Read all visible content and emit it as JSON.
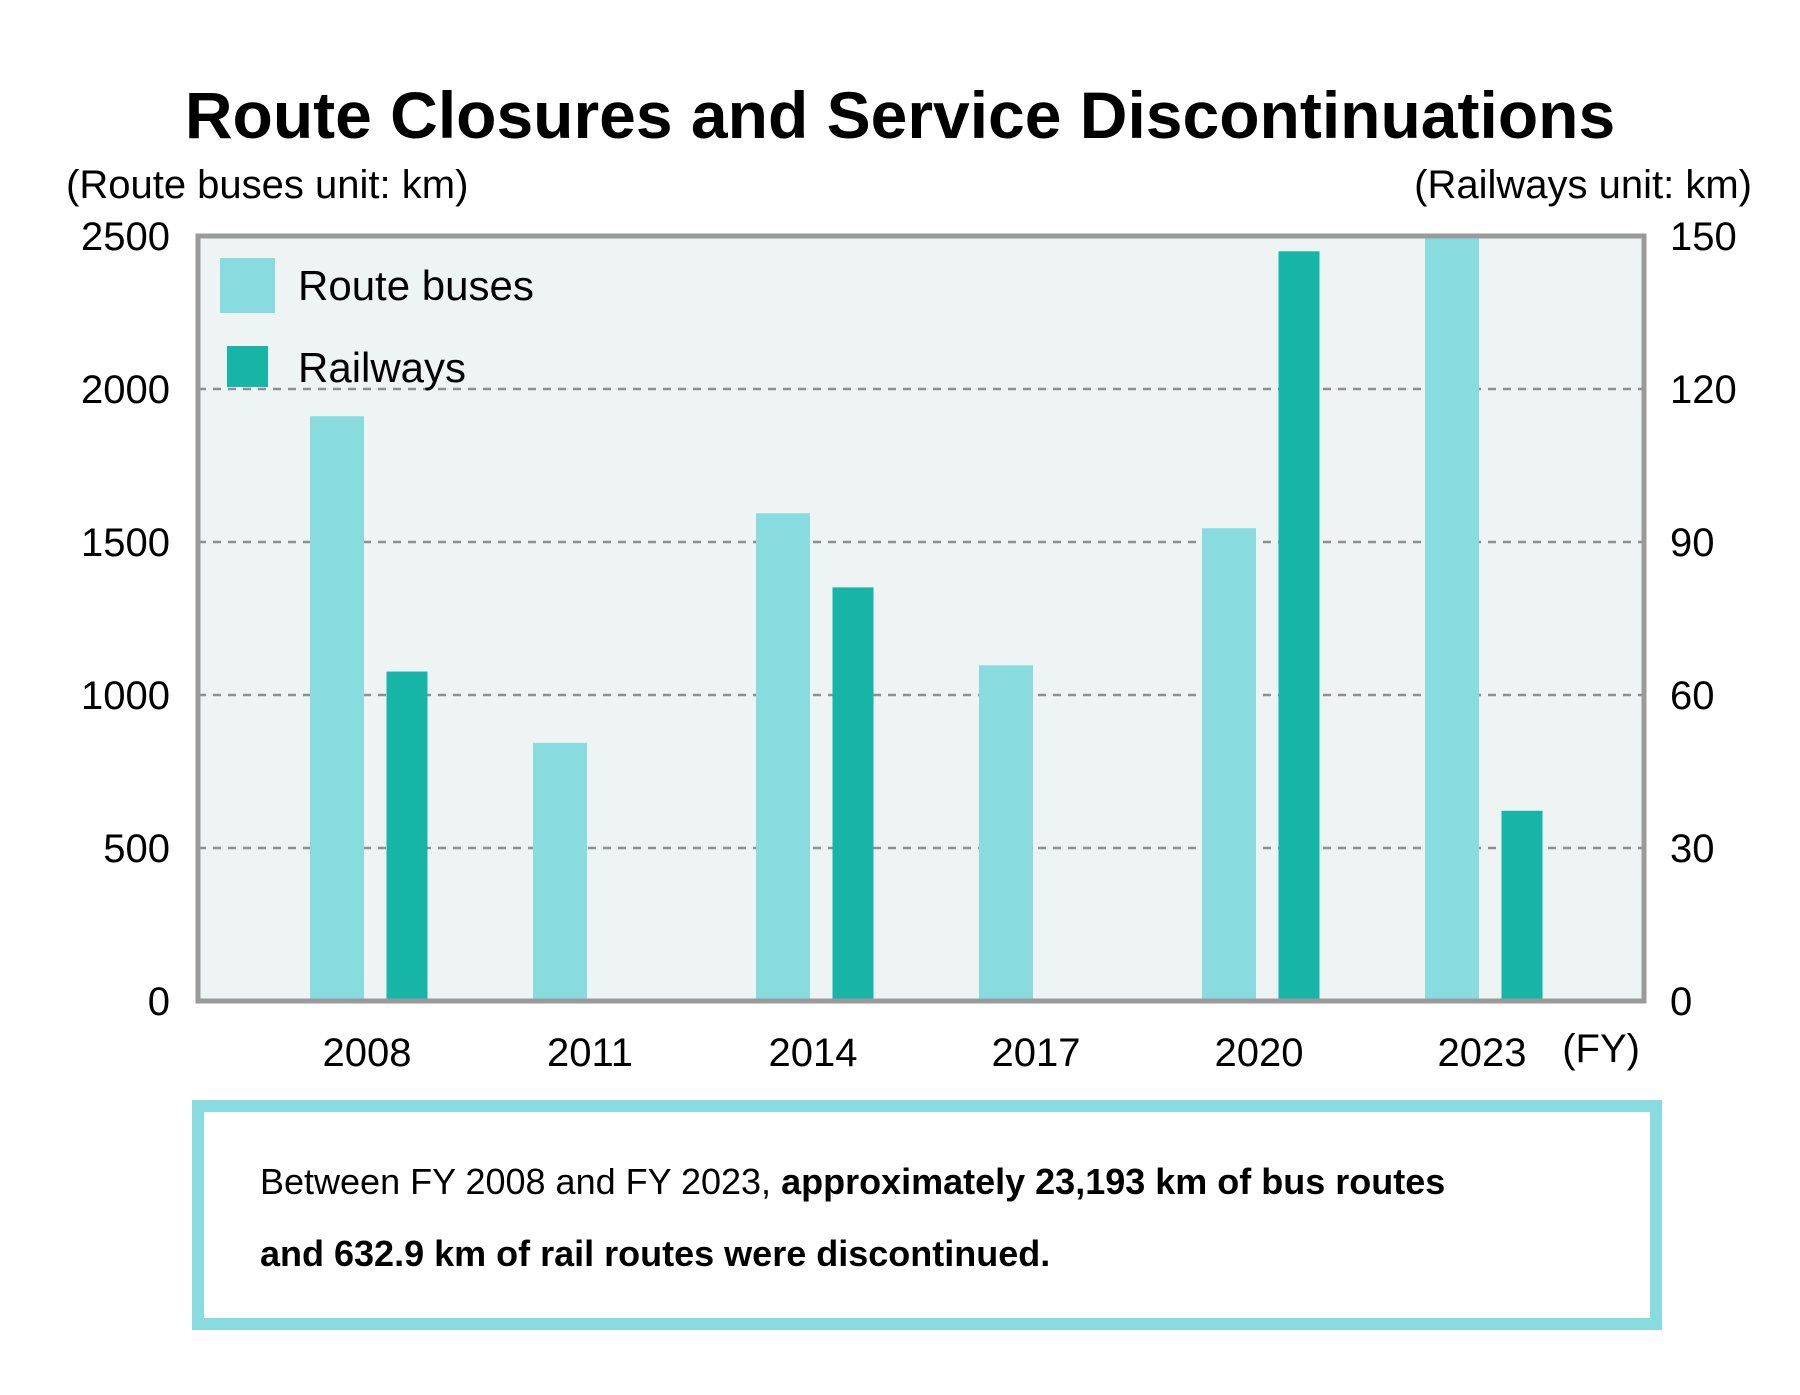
{
  "chart_data": {
    "type": "bar",
    "title": "Route Closures and Service Discontinuations",
    "left_axis_label": "(Route buses unit: km)",
    "right_axis_label": "(Railways unit: km)",
    "xlabel": "(FY)",
    "categories": [
      "2008",
      "2011",
      "2014",
      "2017",
      "2020",
      "2023"
    ],
    "series": [
      {
        "name": "Route buses",
        "axis": "left",
        "color": "#88dce0",
        "values": [
          1911,
          844,
          1594,
          1097,
          1545,
          2500
        ]
      },
      {
        "name": "Railways",
        "axis": "right",
        "color": "#17b4a8",
        "values": [
          64.6,
          null,
          81.1,
          null,
          147,
          37.3
        ]
      }
    ],
    "left_ylim": [
      0,
      2500
    ],
    "left_ticks": [
      "0",
      "500",
      "1000",
      "1500",
      "2000",
      "2500"
    ],
    "right_ylim": [
      0,
      150
    ],
    "right_ticks": [
      "0",
      "30",
      "60",
      "90",
      "120",
      "150"
    ],
    "grid": true,
    "legend_position": "top-left",
    "plot_background": "#eef4f4"
  },
  "note": {
    "prefix": "Between FY 2008 and FY 2023, ",
    "bold_1": "approximately 23,193 km of bus routes",
    "bold_2": "and 632.9 km of rail routes were discontinued."
  }
}
